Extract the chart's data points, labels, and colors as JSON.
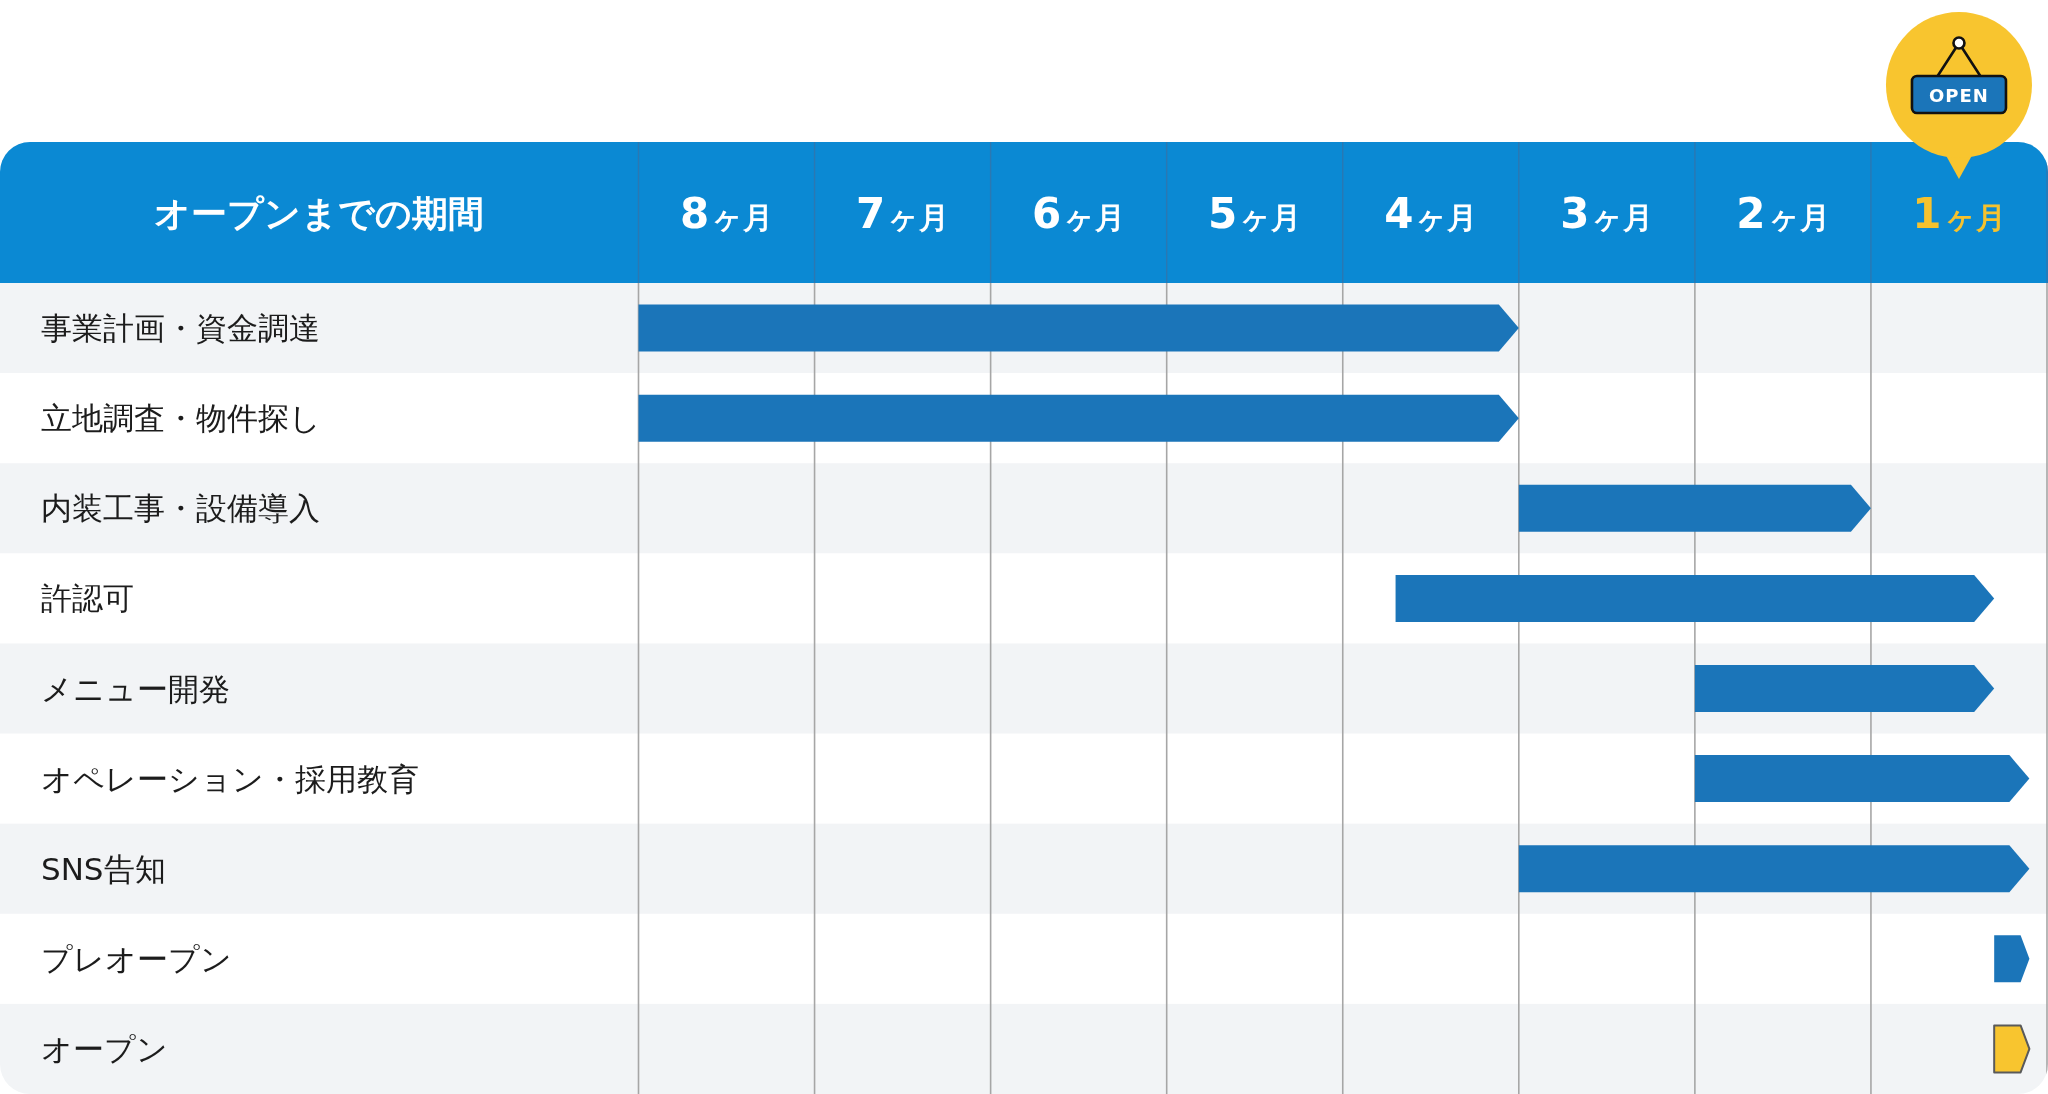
{
  "chart_data": {
    "type": "bar",
    "orientation": "horizontal",
    "xlabel": "オープンまでの期間",
    "categories": [
      "事業計画・資金調達",
      "立地調査・物件探し",
      "内装工事・設備導入",
      "許認可",
      "メニュー開発",
      "オペレーション・採用教育",
      "SNS告知",
      "プレオープン",
      "オープン"
    ],
    "base": [
      3.5,
      3.5,
      1.5,
      0.8,
      0.8,
      0.6,
      0.6,
      0.6,
      0.6
    ],
    "values": [
      5,
      5,
      2,
      3.4,
      1.7,
      1.9,
      2.9,
      0.2,
      0.2
    ],
    "colors": [
      "#1b75b9",
      "#1b75b9",
      "#1b75b9",
      "#1b75b9",
      "#1b75b9",
      "#1b75b9",
      "#1b75b9",
      "#1b75b9",
      "#f8c52f"
    ],
    "xlim": [
      8.5,
      0.5
    ],
    "xticks": [
      {
        "value": 8.5,
        "label": null
      },
      {
        "value": 8,
        "label": "8ヶ月"
      },
      {
        "value": 7.5,
        "label": null
      },
      {
        "value": 7,
        "label": "7ヶ月"
      },
      {
        "value": 6.5,
        "label": null
      },
      {
        "value": 6,
        "label": "6ヶ月"
      },
      {
        "value": 5.5,
        "label": null
      },
      {
        "value": 5,
        "label": "5ヶ月"
      },
      {
        "value": 4.5,
        "label": null
      },
      {
        "value": 4,
        "label": "4ヶ月"
      },
      {
        "value": 3.5,
        "label": null
      },
      {
        "value": 3,
        "label": "3ヶ月"
      },
      {
        "value": 2.5,
        "label": null
      },
      {
        "value": 2,
        "label": "2ヶ月"
      },
      {
        "value": 1.5,
        "label": null
      },
      {
        "value": 1,
        "label": "1ヶ月"
      },
      {
        "value": 0.5,
        "label": null
      }
    ],
    "grid": "x",
    "annotations": [
      "OPEN"
    ]
  }
}
